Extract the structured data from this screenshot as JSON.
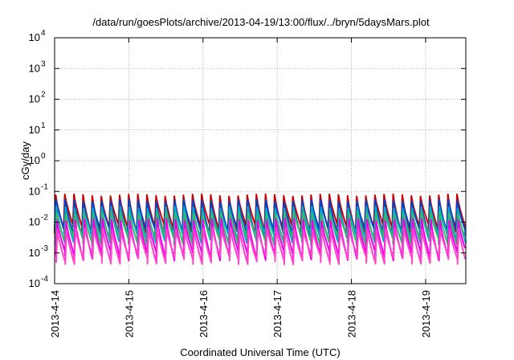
{
  "chart_data": {
    "type": "line",
    "title": "/data/run/goesPlots/archive/2013-04-19/13:00/flux/../bryn/5daysMars.plot",
    "xlabel": "Coordinated Universal Time (UTC)",
    "ylabel": "cGy/day",
    "y_scale": "log",
    "ylim": [
      0.0001,
      10000
    ],
    "y_ticks": [
      {
        "base": "10",
        "exp": "-4"
      },
      {
        "base": "10",
        "exp": "-3"
      },
      {
        "base": "10",
        "exp": "-2"
      },
      {
        "base": "10",
        "exp": "-1"
      },
      {
        "base": "10",
        "exp": "0"
      },
      {
        "base": "10",
        "exp": "1"
      },
      {
        "base": "10",
        "exp": "2"
      },
      {
        "base": "10",
        "exp": "3"
      },
      {
        "base": "10",
        "exp": "4"
      }
    ],
    "xlim": [
      "2013-04-14",
      "2013-04-19 13:00"
    ],
    "x_ticks": [
      "2013-4-14",
      "2013-4-15",
      "2013-4-16",
      "2013-4-17",
      "2013-4-18",
      "2013-4-19"
    ],
    "grid": true,
    "period_hours": 2.95,
    "series": [
      {
        "color": "#cc0000",
        "peak": 0.075,
        "trough": 0.006
      },
      {
        "color": "#0044cc",
        "peak": 0.05,
        "trough": 0.0045
      },
      {
        "color": "#00aacc",
        "peak": 0.03,
        "trough": 0.003
      },
      {
        "color": "#33bb66",
        "peak": 0.02,
        "trough": 0.0025
      },
      {
        "color": "#ee00ee",
        "peak": 0.012,
        "trough": 0.0008
      },
      {
        "color": "#ff44cc",
        "peak": 0.006,
        "trough": 0.0006
      }
    ]
  }
}
